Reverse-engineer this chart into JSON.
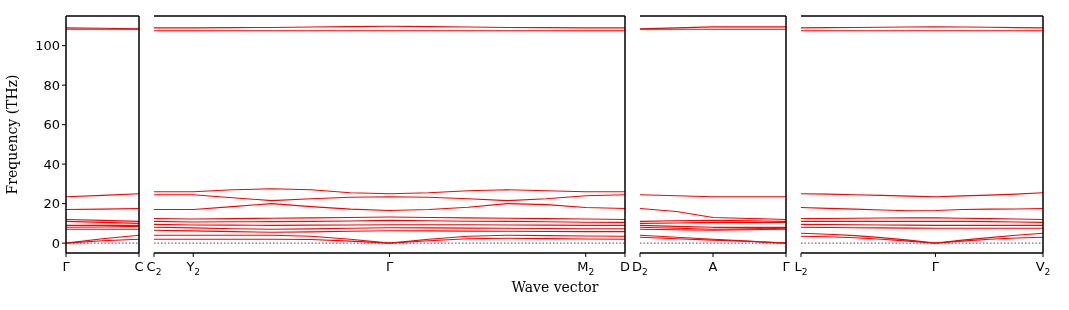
{
  "chart_data": [
    {
      "type": "line",
      "ylabel": "Frequency (THz)",
      "color": "#ff0000",
      "categories": [
        "Γ",
        null,
        "C"
      ],
      "ylim": [
        -5,
        115
      ],
      "yticks": [
        0,
        20,
        40,
        60,
        80,
        100
      ],
      "ref_lines": [
        {
          "axis": "y",
          "value": 0,
          "color": "#0000ff",
          "line_style": "dotted"
        }
      ],
      "series": [
        {
          "values": [
            109,
            108.8,
            108.5
          ]
        },
        {
          "values": [
            108.3,
            108.3,
            108.3
          ]
        },
        {
          "values": [
            23.5,
            24.2,
            25
          ]
        },
        {
          "values": [
            17,
            17.2,
            17.5
          ]
        },
        {
          "values": [
            12,
            11.5,
            11
          ]
        },
        {
          "values": [
            11,
            10.5,
            10
          ]
        },
        {
          "values": [
            9,
            9,
            9
          ]
        },
        {
          "values": [
            8,
            8.2,
            8.5
          ]
        },
        {
          "values": [
            7,
            7,
            7
          ]
        },
        {
          "values": [
            0,
            2.2,
            4
          ]
        },
        {
          "values": [
            0,
            1.2,
            2
          ]
        }
      ]
    },
    {
      "type": "line",
      "xlabel": "Wave vector",
      "color": "#ff0000",
      "categories": [
        "C$_{2}$",
        "Y$_{2}$",
        null,
        null,
        null,
        null,
        "Γ",
        null,
        null,
        null,
        null,
        "M$_{2}$",
        "D"
      ],
      "ylim": [
        -5,
        115
      ],
      "yticks": [
        0,
        20,
        40,
        60,
        80,
        100
      ],
      "tick_labels": "x",
      "ref_lines": [
        {
          "axis": "y",
          "value": 0,
          "color": "#0000ff",
          "line_style": "dotted"
        }
      ],
      "series": [
        {
          "values": [
            107.5,
            107.5,
            107.5,
            107.5,
            107.5,
            107.5,
            107.5,
            107.5,
            107.5,
            107.5,
            107.5,
            107.5,
            107.5
          ]
        },
        {
          "values": [
            109,
            109,
            109.1,
            109.2,
            109.4,
            109.6,
            109.8,
            109.6,
            109.4,
            109.2,
            109.1,
            109,
            109
          ]
        },
        {
          "values": [
            26,
            26,
            27,
            27.5,
            27,
            25.5,
            25,
            25.5,
            26.5,
            27,
            26.5,
            26,
            26
          ]
        },
        {
          "values": [
            24.5,
            24.5,
            23,
            21.5,
            22.5,
            23.2,
            23.5,
            23.2,
            22.5,
            21.5,
            22.5,
            24,
            24.5
          ]
        },
        {
          "values": [
            17,
            17,
            18.5,
            20,
            18.5,
            17.2,
            16.5,
            17,
            18.2,
            20,
            19.5,
            18,
            17.5
          ]
        },
        {
          "values": [
            12.5,
            12.2,
            12.4,
            12.6,
            12.8,
            13,
            13.2,
            13,
            12.8,
            12.6,
            12.4,
            12.2,
            12
          ]
        },
        {
          "values": [
            11,
            10.7,
            10.8,
            10.9,
            11,
            11.2,
            11.5,
            11.3,
            11.1,
            11,
            10.8,
            10.6,
            10.5
          ]
        },
        {
          "values": [
            9.5,
            9.2,
            9.1,
            9,
            9.1,
            9.2,
            9.3,
            9.3,
            9.3,
            9.2,
            9.1,
            9,
            9
          ]
        },
        {
          "values": [
            8,
            7.7,
            7.3,
            7,
            7.2,
            7.5,
            7.8,
            7.7,
            7.6,
            7.5,
            7.4,
            7.3,
            7.3
          ]
        },
        {
          "values": [
            6.5,
            6.2,
            5.8,
            5.5,
            5.7,
            6,
            6.3,
            6.2,
            6.1,
            6,
            5.9,
            5.8,
            5.8
          ]
        },
        {
          "values": [
            4,
            4,
            4,
            4,
            3.5,
            2,
            0,
            2,
            3.5,
            4,
            3.8,
            3.6,
            3.5
          ]
        },
        {
          "values": [
            2,
            2,
            2,
            2,
            1.8,
            1,
            0,
            1.2,
            2.2,
            2.5,
            2.3,
            2.1,
            2
          ]
        }
      ]
    },
    {
      "type": "line",
      "color": "#ff0000",
      "categories": [
        "D$_{2}$",
        null,
        "A",
        null,
        "Γ"
      ],
      "ylim": [
        -5,
        115
      ],
      "yticks": [
        0,
        20,
        40,
        60,
        80,
        100
      ],
      "tick_labels": "x",
      "ref_lines": [
        {
          "axis": "y",
          "value": 0,
          "color": "#0000ff",
          "line_style": "dotted"
        }
      ],
      "series": [
        {
          "values": [
            108.5,
            109,
            109.5,
            109.5,
            109.5
          ]
        },
        {
          "values": [
            108.3,
            108.3,
            108.3,
            108.3,
            108.3
          ]
        },
        {
          "values": [
            24.5,
            24,
            23.5,
            23.5,
            23.5
          ]
        },
        {
          "values": [
            17.5,
            16,
            13,
            12.5,
            12
          ]
        },
        {
          "values": [
            11,
            11.3,
            11.5,
            11.3,
            11
          ]
        },
        {
          "values": [
            10,
            10.2,
            10.5,
            10.5,
            10.5
          ]
        },
        {
          "values": [
            9,
            8.5,
            8,
            8,
            8
          ]
        },
        {
          "values": [
            8,
            7.5,
            7,
            7.2,
            7.5
          ]
        },
        {
          "values": [
            7,
            6.8,
            6.5,
            6.8,
            7
          ]
        },
        {
          "values": [
            4,
            3,
            2,
            1,
            0
          ]
        },
        {
          "values": [
            3,
            2.2,
            1.5,
            0.8,
            0
          ]
        }
      ]
    },
    {
      "type": "line",
      "color": "#ff0000",
      "categories": [
        "L$_{2}$",
        null,
        null,
        null,
        null,
        "Γ",
        null,
        null,
        null,
        "V$_{2}$"
      ],
      "ylim": [
        -5,
        115
      ],
      "yticks": [
        0,
        20,
        40,
        60,
        80,
        100
      ],
      "tick_labels": "x",
      "ref_lines": [
        {
          "axis": "y",
          "value": 0,
          "color": "#0000ff",
          "line_style": "dotted"
        }
      ],
      "series": [
        {
          "values": [
            107.5,
            107.5,
            107.5,
            107.5,
            107.5,
            107.5,
            107.5,
            107.5,
            107.5,
            107.5
          ]
        },
        {
          "values": [
            109,
            109.1,
            109.2,
            109.3,
            109.4,
            109.5,
            109.4,
            109.3,
            109.1,
            109
          ]
        },
        {
          "values": [
            25,
            24.8,
            24.5,
            24.2,
            23.8,
            23.5,
            23.9,
            24.3,
            24.8,
            25.5
          ]
        },
        {
          "values": [
            18,
            17.6,
            17.2,
            16.8,
            16.4,
            16.5,
            17,
            17.2,
            17.3,
            17.5
          ]
        },
        {
          "values": [
            12.5,
            12.5,
            12.6,
            12.7,
            12.8,
            12.8,
            12.6,
            12.4,
            12.2,
            12
          ]
        },
        {
          "values": [
            11,
            11,
            11,
            11,
            11,
            11,
            11,
            10.9,
            10.7,
            10.5
          ]
        },
        {
          "values": [
            9.5,
            9.4,
            9.3,
            9.2,
            9.1,
            9,
            9,
            9,
            9,
            9
          ]
        },
        {
          "values": [
            8,
            7.9,
            7.8,
            7.7,
            7.6,
            7.5,
            7.5,
            7.5,
            7.5,
            7.5
          ]
        },
        {
          "values": [
            5,
            4.5,
            3.8,
            2.8,
            1.5,
            0,
            1.5,
            2.8,
            4,
            5
          ]
        },
        {
          "values": [
            3.5,
            3.2,
            2.7,
            2,
            1,
            0,
            1,
            2,
            2.6,
            3
          ]
        }
      ]
    }
  ]
}
